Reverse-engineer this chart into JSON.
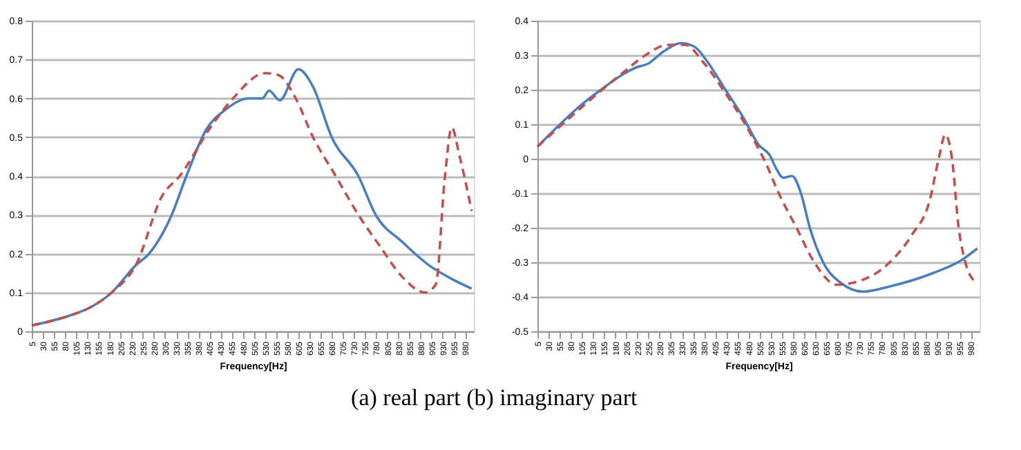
{
  "chart_data": [
    {
      "type": "line",
      "xlabel": "Frequency[Hz]",
      "xlim": [
        5,
        1000
      ],
      "xticks": [
        5,
        30,
        55,
        80,
        105,
        130,
        155,
        180,
        205,
        230,
        255,
        280,
        305,
        330,
        355,
        380,
        405,
        430,
        455,
        480,
        505,
        530,
        555,
        580,
        605,
        630,
        655,
        680,
        705,
        730,
        755,
        780,
        805,
        830,
        855,
        880,
        905,
        930,
        955,
        980
      ],
      "ylim": [
        0,
        0.8
      ],
      "yticks": [
        0,
        0.1,
        0.2,
        0.3,
        0.4,
        0.5,
        0.6,
        0.7,
        0.8
      ],
      "grid": "y",
      "legend": false,
      "series": [
        {
          "color": "#4a7ebf",
          "line_style": "solid",
          "x": [
            5,
            89,
            134,
            185,
            239,
            269,
            320,
            353,
            398,
            440,
            494,
            524,
            539,
            563,
            605,
            638,
            680,
            740,
            779,
            839,
            899,
            950,
            995
          ],
          "values": [
            0.015,
            0.04,
            0.06,
            0.1,
            0.17,
            0.2,
            0.3,
            0.4,
            0.52,
            0.57,
            0.6,
            0.6,
            0.62,
            0.595,
            0.675,
            0.63,
            0.5,
            0.4,
            0.3,
            0.23,
            0.17,
            0.135,
            0.11
          ]
        },
        {
          "color": "#c0504d",
          "line_style": "dashed",
          "x": [
            5,
            89,
            134,
            185,
            239,
            299,
            338,
            410,
            458,
            530,
            560,
            599,
            638,
            689,
            740,
            788,
            839,
            890,
            914,
            935,
            950,
            968,
            995
          ],
          "values": [
            0.015,
            0.04,
            0.06,
            0.1,
            0.17,
            0.35,
            0.4,
            0.53,
            0.6,
            0.665,
            0.66,
            0.6,
            0.5,
            0.4,
            0.3,
            0.22,
            0.14,
            0.1,
            0.12,
            0.4,
            0.525,
            0.45,
            0.31
          ]
        }
      ]
    },
    {
      "type": "line",
      "xlabel": "Frequency[Hz]",
      "xlim": [
        5,
        1000
      ],
      "xticks": [
        5,
        30,
        55,
        80,
        105,
        130,
        155,
        180,
        205,
        230,
        255,
        280,
        305,
        330,
        355,
        380,
        405,
        430,
        455,
        480,
        505,
        530,
        555,
        580,
        605,
        630,
        655,
        680,
        705,
        730,
        755,
        780,
        805,
        830,
        855,
        880,
        905,
        930,
        955,
        980
      ],
      "ylim": [
        -0.5,
        0.4
      ],
      "yticks": [
        -0.5,
        -0.4,
        -0.3,
        -0.2,
        -0.1,
        0,
        0.1,
        0.2,
        0.3,
        0.4
      ],
      "grid": "y",
      "legend": false,
      "annotations": [
        "(a)  real part (b) imaginary part"
      ],
      "series": [
        {
          "color": "#4a7ebf",
          "line_style": "solid",
          "x": [
            5,
            48,
            98,
            148,
            198,
            228,
            253,
            288,
            328,
            358,
            388,
            428,
            468,
            503,
            528,
            543,
            558,
            578,
            598,
            618,
            648,
            688,
            738,
            798,
            898,
            958,
            995
          ],
          "values": [
            0.035,
            0.09,
            0.15,
            0.2,
            0.245,
            0.265,
            0.275,
            0.31,
            0.335,
            0.325,
            0.28,
            0.2,
            0.12,
            0.04,
            0.01,
            -0.03,
            -0.055,
            -0.05,
            -0.1,
            -0.2,
            -0.3,
            -0.36,
            -0.385,
            -0.37,
            -0.33,
            -0.295,
            -0.26
          ]
        },
        {
          "color": "#c0504d",
          "line_style": "dashed",
          "x": [
            5,
            198,
            248,
            298,
            338,
            378,
            428,
            468,
            498,
            518,
            548,
            588,
            628,
            678,
            728,
            798,
            848,
            888,
            908,
            923,
            938,
            953,
            968,
            988
          ],
          "values": [
            0.035,
            0.25,
            0.3,
            0.33,
            0.33,
            0.28,
            0.19,
            0.11,
            0.04,
            -0.01,
            -0.1,
            -0.2,
            -0.3,
            -0.365,
            -0.355,
            -0.3,
            -0.22,
            -0.12,
            0.0,
            0.07,
            0.0,
            -0.2,
            -0.3,
            -0.355
          ]
        }
      ]
    }
  ]
}
